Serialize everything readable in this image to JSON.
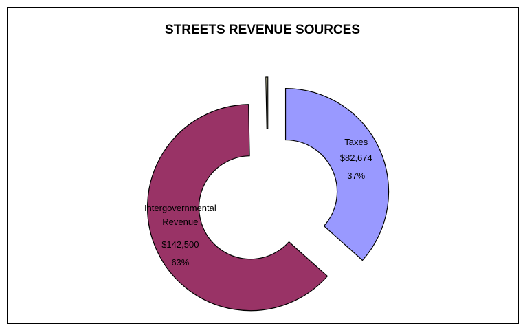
{
  "chart_data": {
    "type": "donut",
    "title": "STREETS REVENUE SOURCES",
    "categories": [
      "Taxes",
      "Intergovernmental Revenue",
      null
    ],
    "values": [
      82674,
      142500,
      700
    ],
    "value_labels": [
      "$82,674",
      "$142,500",
      null
    ],
    "percents": [
      37,
      63,
      null
    ],
    "percent_labels": [
      "37%",
      "63%",
      null
    ],
    "colors": [
      "#9999ff",
      "#993366",
      "#ffffcc"
    ]
  }
}
